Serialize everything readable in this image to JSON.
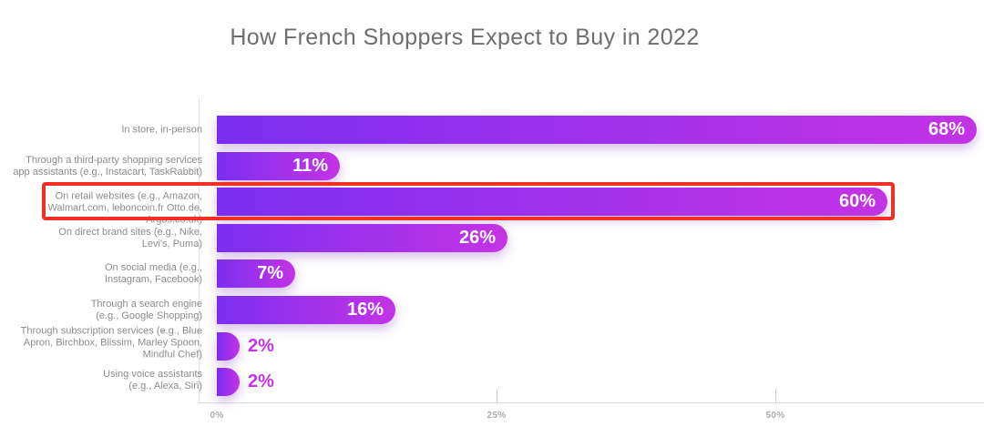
{
  "title": "How French Shoppers Expect to Buy in 2022",
  "chart_data": {
    "type": "bar",
    "orientation": "horizontal",
    "title": "How French Shoppers Expect to Buy in 2022",
    "categories": [
      "In store, in-person",
      "Through a third-party shopping services app assistants (e.g., Instacart, TaskRabbit)",
      "On retail websites (e.g., Amazon, Walmart.com, leboncoin.fr Otto.de, Argos.co.uk)",
      "On direct brand sites (e.g., Nike, Levi's, Puma)",
      "On social media (e.g., Instagram, Facebook)",
      "Through a search engine (e.g., Google Shopping)",
      "Through subscription services (e.g., Blue Apron, Birchbox, Blissim, Marley Spoon, Mindful Chef)",
      "Using voice assistants (e.g., Alexa, Siri)"
    ],
    "category_lines": [
      [
        "In store, in-person"
      ],
      [
        "Through a third-party shopping services",
        "app assistants (e.g., Instacart, TaskRabbit)"
      ],
      [
        "On retail websites (e.g., Amazon,",
        "Walmart.com, leboncoin.fr Otto.de,",
        "Argos.co.uk)"
      ],
      [
        "On direct brand sites (e.g., Nike,",
        "Levi's, Puma)"
      ],
      [
        "On social media (e.g.,",
        "Instagram, Facebook)"
      ],
      [
        "Through a search engine",
        "(e.g., Google Shopping)"
      ],
      [
        "Through subscription services (e.g., Blue",
        "Apron, Birchbox, Blissim, Marley Spoon,",
        "Mindful Chef)"
      ],
      [
        "Using voice assistants",
        "(e.g., Alexa, Siri)"
      ]
    ],
    "values": [
      68,
      11,
      60,
      26,
      7,
      16,
      2,
      2
    ],
    "value_labels": [
      "68%",
      "11%",
      "60%",
      "26%",
      "7%",
      "16%",
      "2%",
      "2%"
    ],
    "label_inside": [
      true,
      true,
      true,
      true,
      true,
      true,
      false,
      false
    ],
    "label_dy": [
      0,
      0,
      7,
      0,
      0,
      0,
      -4,
      -2
    ],
    "highlighted_index": 2,
    "x_ticks": [
      {
        "label": "0%",
        "value": 0
      },
      {
        "label": "25%",
        "value": 25
      },
      {
        "label": "50%",
        "value": 50
      }
    ],
    "xlim": [
      0,
      68.6
    ],
    "grid": false,
    "legend": null
  },
  "colors": {
    "bar_gradient_start": "#7B2EF0",
    "bar_gradient_end": "#C433E6",
    "value_label_inside": "#FFFFFF",
    "value_label_outside": "#C433E6",
    "highlight_border": "#EE3123",
    "title_text": "#6E6E6E",
    "category_text": "#8C8C8C",
    "axis_line": "#DBDBDB",
    "tick_text": "#ABABAB",
    "background": "#FFFFFF"
  }
}
